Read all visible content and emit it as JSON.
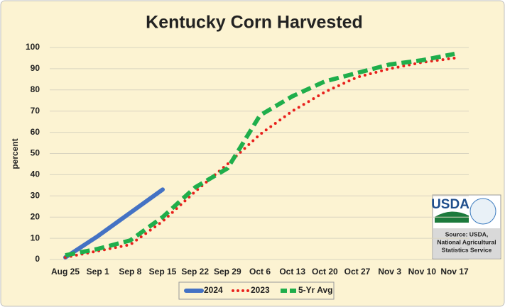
{
  "chart_data": {
    "type": "line",
    "title": "Kentucky Corn Harvested",
    "ylabel": "percent",
    "categories": [
      "Aug 25",
      "Sep 1",
      "Sep 8",
      "Sep 15",
      "Sep 22",
      "Sep 29",
      "Oct 6",
      "Oct 13",
      "Oct 20",
      "Oct 27",
      "Nov 3",
      "Nov 10",
      "Nov 17"
    ],
    "series": [
      {
        "name": "2024",
        "color": "#4472c4",
        "style": "solid",
        "values": [
          1,
          11,
          22,
          33,
          null,
          null,
          null,
          null,
          null,
          null,
          null,
          null,
          null
        ]
      },
      {
        "name": "2023",
        "color": "#e8201c",
        "style": "dotted",
        "values": [
          1,
          4,
          7,
          18,
          32,
          45,
          59,
          70,
          79,
          86,
          90,
          93,
          95
        ]
      },
      {
        "name": "5-Yr Avg",
        "color": "#1fae4b",
        "style": "dashed",
        "values": [
          2,
          5,
          9,
          20,
          34,
          43,
          68,
          77,
          84,
          88,
          92,
          94,
          97
        ]
      }
    ],
    "ylim": [
      0,
      100
    ],
    "yticks": [
      0,
      10,
      20,
      30,
      40,
      50,
      60,
      70,
      80,
      90,
      100
    ],
    "grid": true,
    "legend": "bottom",
    "logo": {
      "text": "USDA",
      "source": [
        "Source: USDA,",
        "National Agricultural",
        "Statistics Service"
      ]
    }
  }
}
